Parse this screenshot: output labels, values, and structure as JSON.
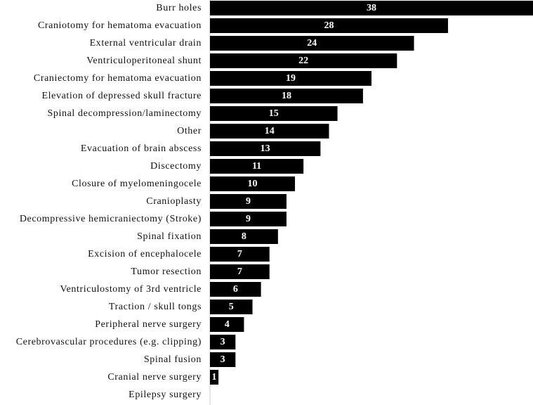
{
  "chart_data": {
    "type": "bar",
    "orientation": "horizontal",
    "categories": [
      "Burr holes",
      "Craniotomy for hematoma evacuation",
      "External ventricular drain",
      "Ventriculoperitoneal shunt",
      "Craniectomy for hematoma evacuation",
      "Elevation of depressed skull fracture",
      "Spinal decompression/laminectomy",
      "Other",
      "Evacuation of brain abscess",
      "Discectomy",
      "Closure of myelomeningocele",
      "Cranioplasty",
      "Decompressive hemicraniectomy (Stroke)",
      "Spinal fixation",
      "Excision of encephalocele",
      "Tumor resection",
      "Ventriculostomy of 3rd ventricle",
      "Traction / skull tongs",
      "Peripheral nerve surgery",
      "Cerebrovascular procedures (e.g. clipping)",
      "Spinal fusion",
      "Cranial nerve surgery",
      "Epilepsy surgery"
    ],
    "values": [
      38,
      28,
      24,
      22,
      19,
      18,
      15,
      14,
      13,
      11,
      10,
      9,
      9,
      8,
      7,
      7,
      6,
      5,
      4,
      3,
      3,
      1,
      0
    ],
    "value_labels": [
      "38",
      "28",
      "24",
      "22",
      "19",
      "18",
      "15",
      "14",
      "13",
      "11",
      "10",
      "9",
      "9",
      "8",
      "7",
      "7",
      "6",
      "5",
      "4",
      "3",
      "3",
      "1",
      ""
    ],
    "title": "",
    "xlabel": "",
    "ylabel": "",
    "xlim": [
      0,
      38
    ],
    "grid": false,
    "legend": "none",
    "colors": {
      "bar": "#000000",
      "value_text": "#ffffff",
      "label_text": "#111111",
      "axis": "#cccccc"
    }
  }
}
